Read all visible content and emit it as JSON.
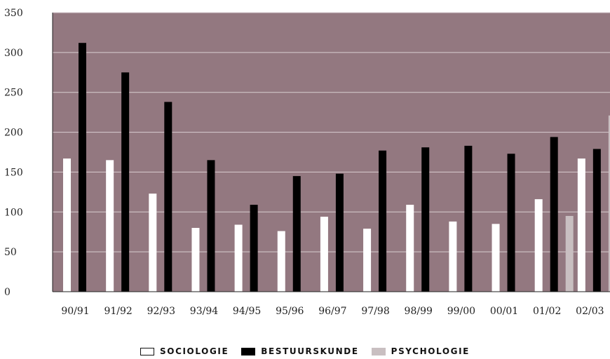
{
  "chart_data": {
    "type": "bar",
    "categories": [
      "90/91",
      "91/92",
      "92/93",
      "93/94",
      "94/95",
      "95/96",
      "96/97",
      "97/98",
      "98/99",
      "99/00",
      "00/01",
      "01/02",
      "02/03"
    ],
    "series": [
      {
        "name": "SOCIOLOGIE",
        "values": [
          167,
          165,
          123,
          80,
          84,
          76,
          94,
          79,
          109,
          88,
          85,
          116,
          167
        ],
        "color": "#ffffff"
      },
      {
        "name": "BESTUURSKUNDE",
        "values": [
          312,
          275,
          238,
          165,
          109,
          145,
          148,
          177,
          181,
          183,
          173,
          194,
          179
        ],
        "color": "#000000"
      },
      {
        "name": "PSYCHOLOGIE",
        "values": [
          null,
          null,
          null,
          null,
          null,
          null,
          null,
          null,
          null,
          null,
          null,
          95,
          221
        ],
        "color": "#c9bfc1"
      }
    ],
    "ylim": [
      0,
      350
    ],
    "yticks": [
      0,
      50,
      100,
      150,
      200,
      250,
      300,
      350
    ],
    "grid": true,
    "legend_position": "bottom-center",
    "plot_background": "#937880",
    "gridline_color": "#d8cdd0"
  }
}
